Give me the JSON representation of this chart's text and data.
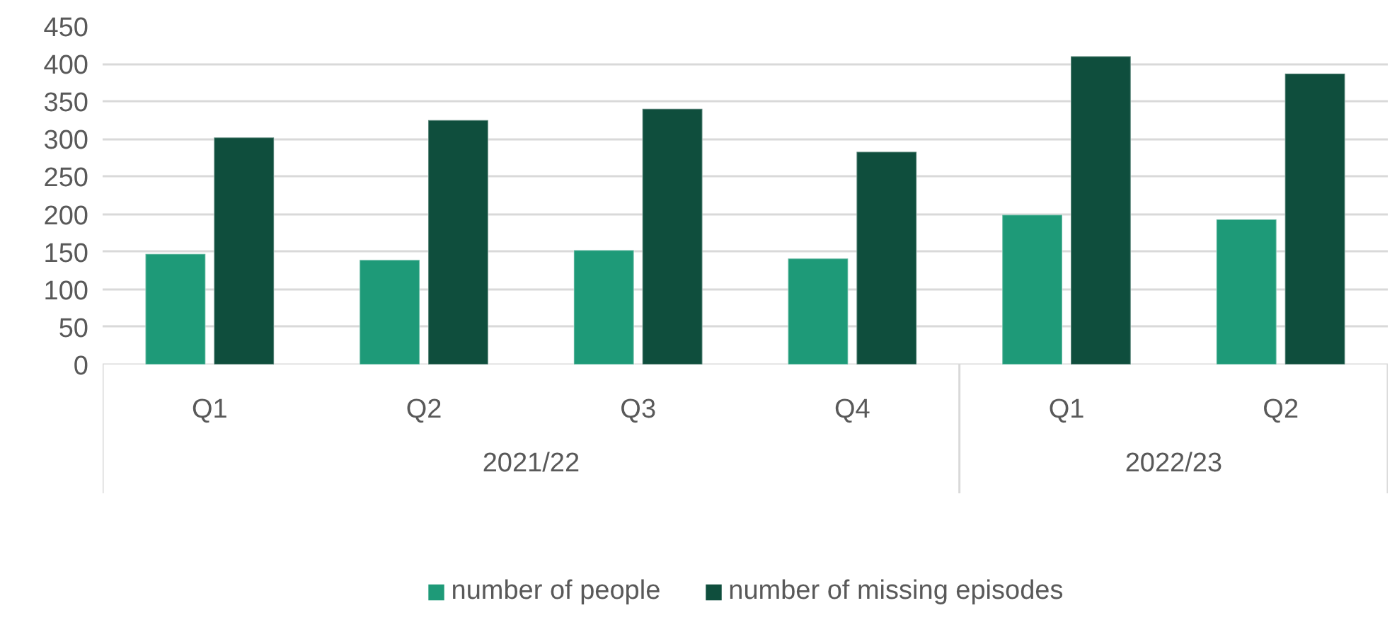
{
  "chart_data": {
    "type": "bar",
    "categories": [
      "Q1",
      "Q2",
      "Q3",
      "Q4",
      "Q1",
      "Q2"
    ],
    "annotations": [
      "2021/22",
      "2022/23"
    ],
    "series": [
      {
        "name": "number of people",
        "color": "#1e9a78",
        "values": [
          147,
          139,
          152,
          141,
          199,
          193
        ]
      },
      {
        "name": "number of missing episodes",
        "color": "#0f4e3d",
        "values": [
          302,
          325,
          340,
          283,
          410,
          387
        ]
      }
    ],
    "ylim": [
      0,
      450
    ],
    "yticks": [
      0,
      50,
      100,
      150,
      200,
      250,
      300,
      350,
      400,
      450
    ],
    "grid": "y",
    "legend": "bottom"
  }
}
